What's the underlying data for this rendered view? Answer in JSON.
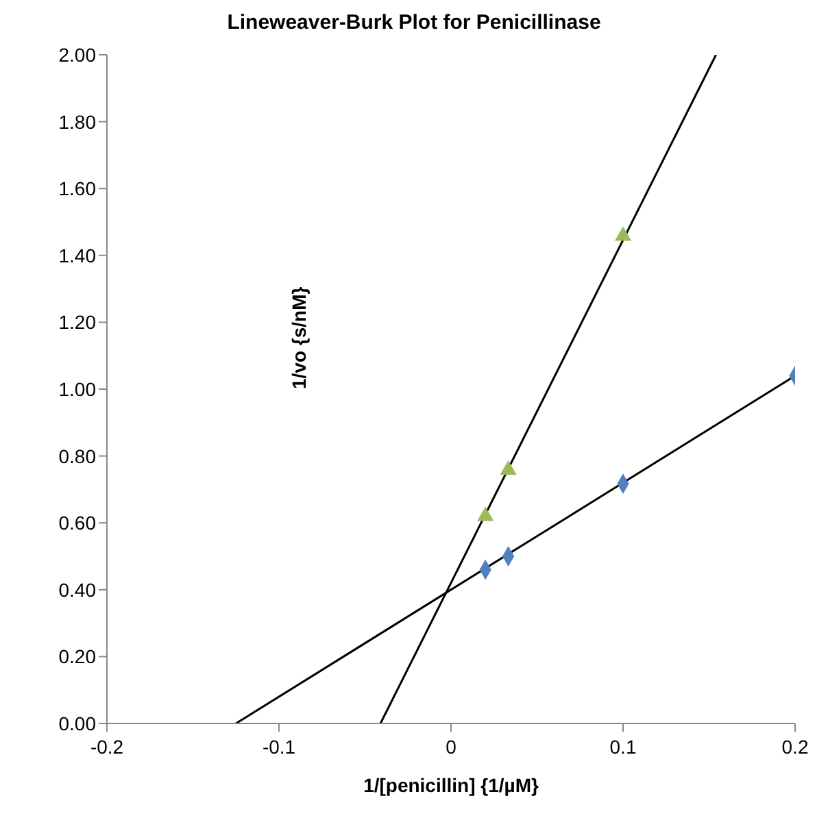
{
  "chart_data": {
    "type": "scatter",
    "title": "Lineweaver-Burk Plot for Penicillinase",
    "xlabel": "1/[penicillin] {1/µM}",
    "ylabel": "1/vo {s/nM}",
    "xlim": [
      -0.2,
      0.2
    ],
    "xticks": [
      -0.2,
      -0.1,
      0,
      0.1,
      0.2
    ],
    "ylim": [
      0,
      2
    ],
    "yticks": [
      {
        "value": 0,
        "label": "0.00"
      },
      {
        "value": 0.2,
        "label": "0.20"
      },
      {
        "value": 0.4,
        "label": "0.40"
      },
      {
        "value": 0.6,
        "label": "0.60"
      },
      {
        "value": 0.8,
        "label": "0.80"
      },
      {
        "value": 1,
        "label": "1.00"
      },
      {
        "value": 1.2,
        "label": "1.20"
      },
      {
        "value": 1.4,
        "label": "1.40"
      },
      {
        "value": 1.6,
        "label": "1.60"
      },
      {
        "value": 1.8,
        "label": "1.80"
      },
      {
        "value": 2,
        "label": "2.00"
      }
    ],
    "grid": false,
    "series": [
      {
        "marker": "diamond",
        "color": "#4f81bd",
        "x": [
          0.02,
          0.0333,
          0.1,
          0.2
        ],
        "values": [
          0.46,
          0.5,
          0.717,
          1.04
        ]
      },
      {
        "marker": "triangle",
        "color": "#9bbb59",
        "x": [
          0.02,
          0.0333,
          0.1
        ],
        "values": [
          0.62,
          0.758,
          1.458
        ]
      },
      {
        "type": "line",
        "marker": "none",
        "color": "#000000",
        "x": [
          -0.125,
          0.2
        ],
        "values": [
          0,
          1.04
        ]
      },
      {
        "type": "line",
        "marker": "none",
        "color": "#000000",
        "x": [
          -0.041,
          0.154
        ],
        "values": [
          0,
          2
        ]
      }
    ]
  }
}
